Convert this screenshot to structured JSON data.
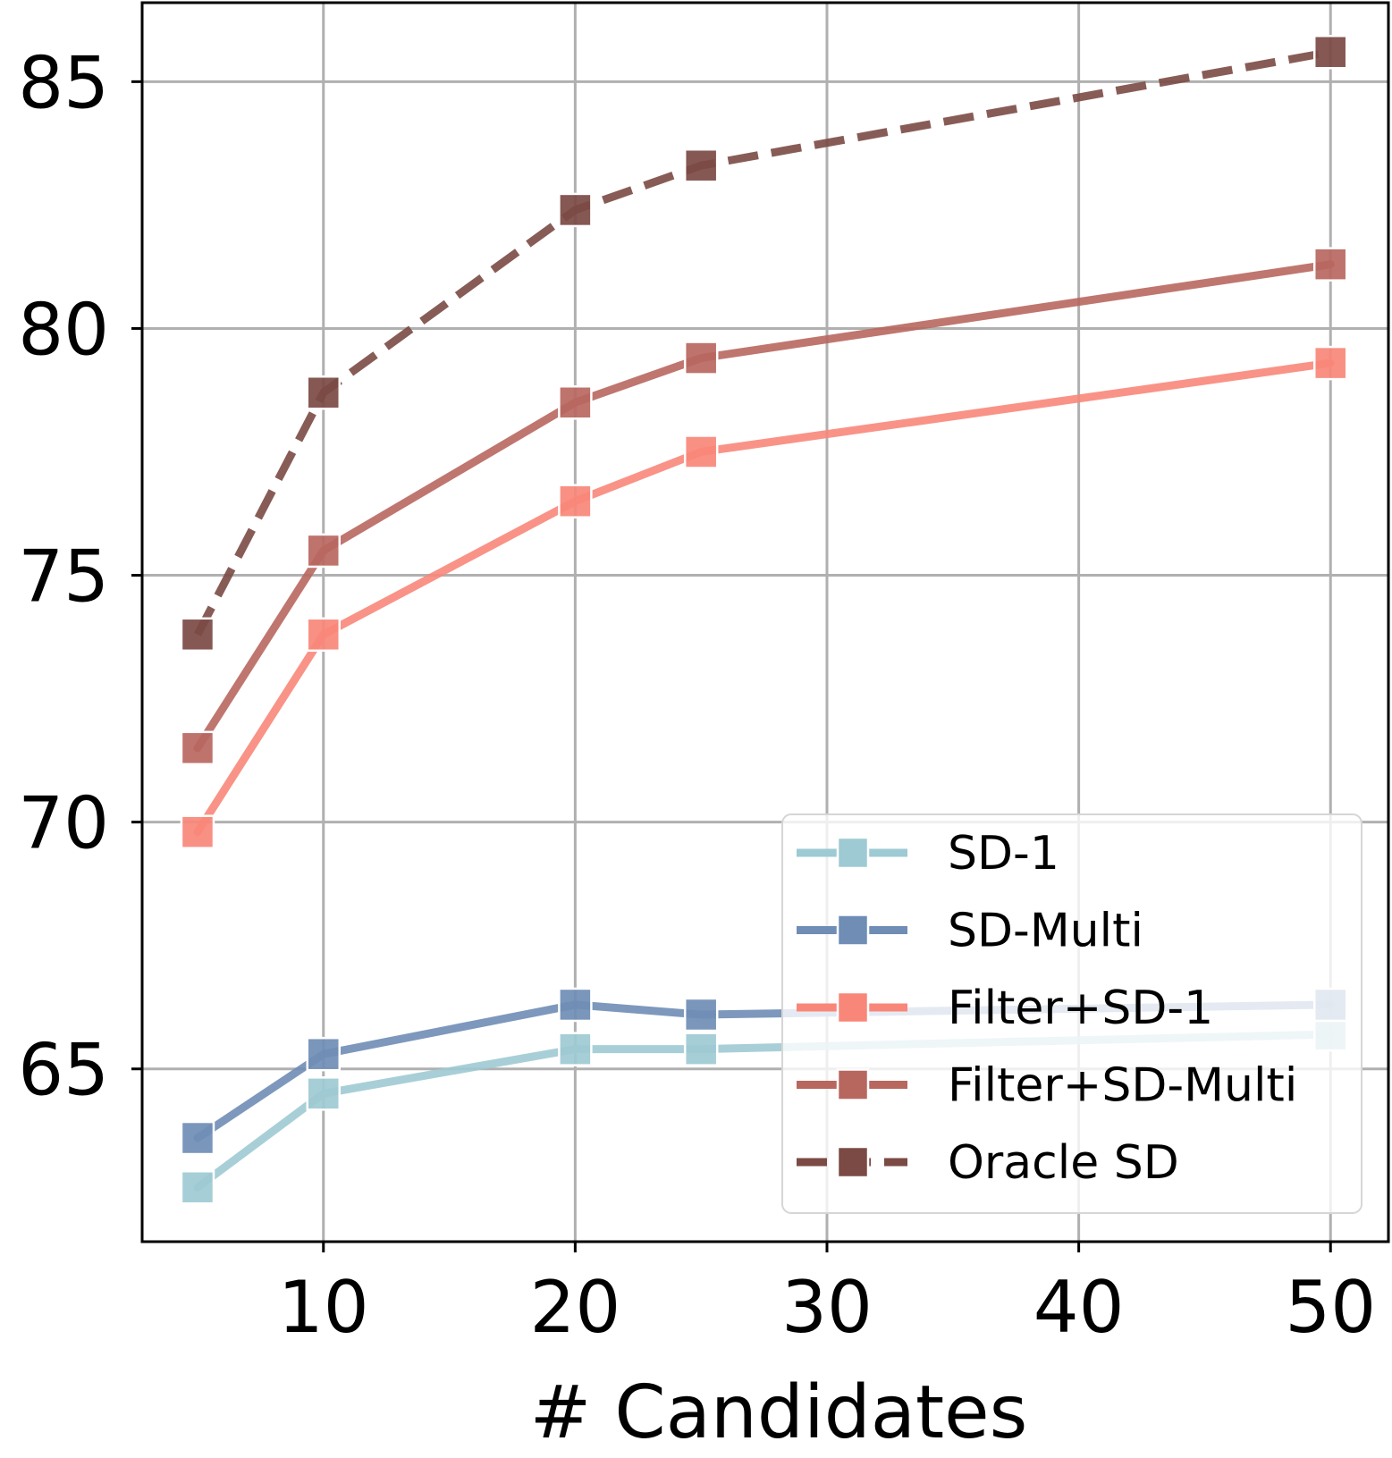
{
  "chart_data": {
    "type": "line",
    "title": "",
    "xlabel": "# Candidates",
    "ylabel": "",
    "xlim": [
      2.8,
      52.3
    ],
    "ylim": [
      61.5,
      86.6
    ],
    "xticks": [
      10,
      20,
      30,
      40,
      50
    ],
    "yticks": [
      65,
      70,
      75,
      80,
      85
    ],
    "xtick_labels": [
      "10",
      "20",
      "30",
      "40",
      "50"
    ],
    "ytick_labels": [
      "65",
      "70",
      "75",
      "80",
      "85"
    ],
    "grid": true,
    "legend_position": "lower-right",
    "x": [
      5,
      10,
      20,
      25,
      50
    ],
    "series": [
      {
        "name": "SD-1",
        "values": [
          62.6,
          64.5,
          65.4,
          65.4,
          65.7
        ],
        "color": "#9ecad3",
        "dashed": false,
        "marker": "square"
      },
      {
        "name": "SD-Multi",
        "values": [
          63.6,
          65.3,
          66.3,
          66.1,
          66.3
        ],
        "color": "#6f8db5",
        "dashed": false,
        "marker": "square"
      },
      {
        "name": "Filter+SD-1",
        "values": [
          69.8,
          73.8,
          76.5,
          77.5,
          79.3
        ],
        "color": "#f8877a",
        "dashed": false,
        "marker": "square"
      },
      {
        "name": "Filter+SD-Multi",
        "values": [
          71.5,
          75.5,
          78.5,
          79.4,
          81.3
        ],
        "color": "#b8675f",
        "dashed": false,
        "marker": "square"
      },
      {
        "name": "Oracle SD",
        "values": [
          73.8,
          78.7,
          82.4,
          83.3,
          85.6
        ],
        "color": "#7b4a44",
        "dashed": true,
        "marker": "square"
      }
    ]
  }
}
